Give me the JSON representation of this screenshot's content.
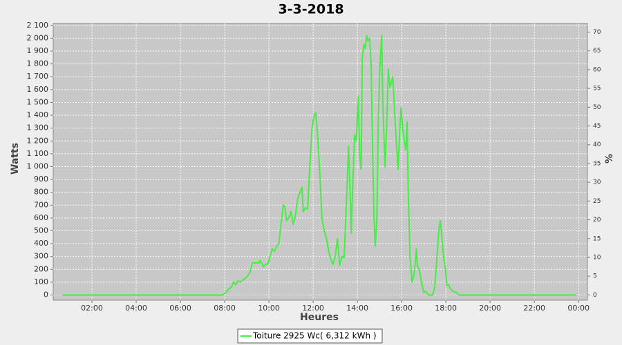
{
  "chart_data": {
    "type": "line",
    "title": "3-3-2018",
    "xlabel": "Heures",
    "ylabel": "Watts",
    "y2label": "%",
    "grid": true,
    "legend": "bottom",
    "xlim": [
      0.25,
      24.4
    ],
    "xticks": [
      {
        "value": 2,
        "label": "02:00"
      },
      {
        "value": 4,
        "label": "04:00"
      },
      {
        "value": 6,
        "label": "06:00"
      },
      {
        "value": 8,
        "label": "08:00"
      },
      {
        "value": 10,
        "label": "10:00"
      },
      {
        "value": 12,
        "label": "12:00"
      },
      {
        "value": 14,
        "label": "14:00"
      },
      {
        "value": 16,
        "label": "16:00"
      },
      {
        "value": 18,
        "label": "18:00"
      },
      {
        "value": 20,
        "label": "20:00"
      },
      {
        "value": 22,
        "label": "22:00"
      },
      {
        "value": 24,
        "label": "00:00"
      }
    ],
    "ylim": [
      -40,
      2115
    ],
    "yticks": [
      0,
      100,
      200,
      300,
      400,
      500,
      600,
      700,
      800,
      900,
      {
        "value": 1000,
        "label": "1 000"
      },
      {
        "value": 1100,
        "label": "1 100"
      },
      {
        "value": 1200,
        "label": "1 200"
      },
      {
        "value": 1300,
        "label": "1 300"
      },
      {
        "value": 1400,
        "label": "1 400"
      },
      {
        "value": 1500,
        "label": "1 500"
      },
      {
        "value": 1600,
        "label": "1 600"
      },
      {
        "value": 1700,
        "label": "1 700"
      },
      {
        "value": 1800,
        "label": "1 800"
      },
      {
        "value": 1900,
        "label": "1 900"
      },
      {
        "value": 2000,
        "label": "2 000"
      },
      {
        "value": 2100,
        "label": "2 100"
      }
    ],
    "y2lim": [
      -1.4,
      72.3
    ],
    "y2ticks": [
      0,
      5,
      10,
      15,
      20,
      25,
      30,
      35,
      40,
      45,
      50,
      55,
      60,
      65,
      70
    ],
    "x": [
      0.66,
      7.9,
      8.05,
      8.2,
      8.3,
      8.4,
      8.5,
      8.6,
      8.7,
      8.85,
      9.0,
      9.15,
      9.25,
      9.4,
      9.55,
      9.6,
      9.7,
      9.75,
      9.85,
      9.95,
      10.05,
      10.15,
      10.25,
      10.35,
      10.45,
      10.55,
      10.65,
      10.72,
      10.8,
      10.9,
      11.0,
      11.1,
      11.2,
      11.3,
      11.4,
      11.5,
      11.55,
      11.65,
      11.75,
      11.85,
      11.95,
      12.05,
      12.12,
      12.2,
      12.3,
      12.4,
      12.5,
      12.6,
      12.72,
      12.82,
      12.9,
      13.0,
      13.1,
      13.2,
      13.3,
      13.4,
      13.5,
      13.6,
      13.67,
      13.72,
      13.8,
      13.87,
      13.95,
      14.05,
      14.1,
      14.17,
      14.22,
      14.3,
      14.36,
      14.42,
      14.47,
      14.55,
      14.62,
      14.68,
      14.75,
      14.81,
      14.88,
      14.95,
      15.02,
      15.1,
      15.15,
      15.25,
      15.32,
      15.4,
      15.47,
      15.53,
      15.6,
      15.65,
      15.72,
      15.84,
      15.92,
      15.97,
      16.05,
      16.12,
      16.19,
      16.25,
      16.3,
      16.38,
      16.47,
      16.55,
      16.62,
      16.66,
      16.72,
      16.8,
      16.9,
      17.0,
      17.1,
      17.2,
      17.4,
      17.5,
      17.6,
      17.68,
      17.75,
      17.82,
      17.9,
      17.98,
      18.05,
      18.12,
      18.2,
      18.3,
      18.47,
      18.6,
      23.9
    ],
    "series": [
      {
        "name": "Toiture 2925 Wc( 6,312 kWh )",
        "color": "#44ee44",
        "values": [
          0,
          0,
          20,
          50,
          60,
          100,
          80,
          110,
          100,
          120,
          140,
          180,
          250,
          250,
          250,
          270,
          240,
          220,
          240,
          240,
          300,
          360,
          340,
          380,
          400,
          550,
          700,
          690,
          580,
          600,
          650,
          550,
          620,
          750,
          800,
          840,
          650,
          680,
          670,
          1000,
          1300,
          1400,
          1420,
          1250,
          950,
          600,
          500,
          440,
          330,
          270,
          240,
          300,
          440,
          230,
          300,
          290,
          700,
          1160,
          800,
          480,
          900,
          1250,
          1200,
          1550,
          1100,
          980,
          1850,
          1950,
          1920,
          2020,
          1980,
          2000,
          1800,
          1200,
          600,
          380,
          600,
          1400,
          1800,
          2020,
          1500,
          1000,
          1300,
          1760,
          1620,
          1650,
          1700,
          1550,
          1300,
          980,
          1300,
          1460,
          1300,
          1200,
          1130,
          1350,
          800,
          300,
          100,
          150,
          250,
          360,
          220,
          200,
          100,
          20,
          30,
          0,
          0,
          60,
          300,
          500,
          580,
          450,
          300,
          200,
          70,
          80,
          50,
          30,
          20,
          0,
          0
        ]
      }
    ]
  }
}
